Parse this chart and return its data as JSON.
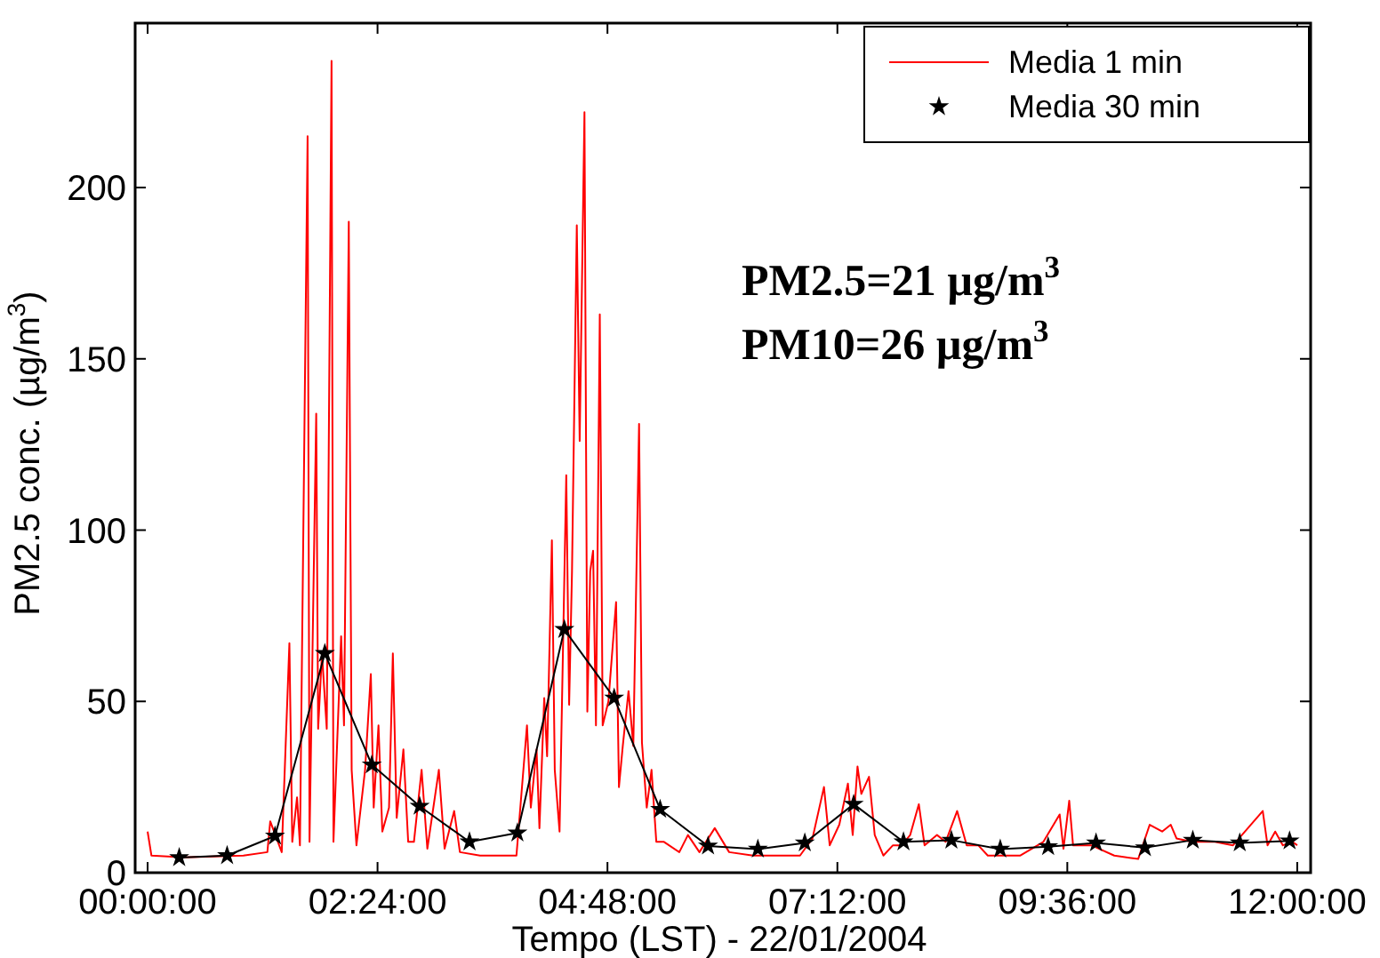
{
  "chart_data": {
    "type": "line",
    "xlabel": "Tempo (LST) - 22/01/2004",
    "ylabel": "PM2.5 conc. (µg/m$^{3}$)",
    "annotations": [
      "PM2.5=21 µg/m$^{3}$",
      "PM10=26 µg/m$^{3}$"
    ],
    "xlim": [
      -0.13,
      12.14
    ],
    "xticks": [
      {
        "value": 0,
        "label": "00:00:00"
      },
      {
        "value": 2.4,
        "label": "02:24:00"
      },
      {
        "value": 4.8,
        "label": "04:48:00"
      },
      {
        "value": 7.2,
        "label": "07:12:00"
      },
      {
        "value": 9.6,
        "label": "09:36:00"
      },
      {
        "value": 12,
        "label": "12:00:00"
      }
    ],
    "ylim": [
      0,
      248
    ],
    "yticks": [
      0,
      50,
      100,
      150,
      200
    ],
    "grid": false,
    "legend": "top right",
    "series": [
      {
        "name": "Media 1 min",
        "color": "#ff0000",
        "marker": "none",
        "line_style": "solid",
        "x": [
          0,
          0.04,
          0.38,
          1.0,
          1.25,
          1.28,
          1.4,
          1.48,
          1.51,
          1.56,
          1.59,
          1.67,
          1.69,
          1.76,
          1.78,
          1.82,
          1.87,
          1.92,
          1.94,
          2.02,
          2.05,
          2.1,
          2.13,
          2.18,
          2.27,
          2.33,
          2.36,
          2.41,
          2.45,
          2.52,
          2.56,
          2.6,
          2.67,
          2.72,
          2.78,
          2.86,
          2.92,
          3.04,
          3.1,
          3.2,
          3.26,
          3.47,
          3.85,
          3.96,
          4.0,
          4.06,
          4.09,
          4.14,
          4.17,
          4.22,
          4.25,
          4.3,
          4.37,
          4.4,
          4.43,
          4.48,
          4.51,
          4.56,
          4.59,
          4.62,
          4.65,
          4.68,
          4.72,
          4.75,
          4.81,
          4.89,
          4.92,
          4.96,
          5.02,
          5.07,
          5.13,
          5.16,
          5.21,
          5.26,
          5.31,
          5.39,
          5.55,
          5.64,
          5.76,
          5.92,
          6.07,
          6.32,
          6.57,
          6.81,
          6.94,
          7.06,
          7.12,
          7.22,
          7.31,
          7.36,
          7.41,
          7.45,
          7.53,
          7.59,
          7.68,
          7.78,
          7.87,
          7.96,
          8.05,
          8.11,
          8.24,
          8.33,
          8.45,
          8.55,
          8.67,
          8.77,
          9.11,
          9.35,
          9.52,
          9.56,
          9.62,
          9.66,
          9.85,
          10.09,
          10.34,
          10.46,
          10.59,
          10.68,
          10.74,
          10.9,
          11.14,
          11.33,
          11.64,
          11.69,
          11.77,
          11.85,
          11.95,
          12.0
        ],
        "values": [
          12,
          5,
          4.5,
          5,
          6,
          15,
          6,
          67,
          9,
          22,
          8,
          215,
          9,
          134,
          42,
          64,
          42,
          237,
          9,
          69,
          43,
          190,
          30,
          8,
          30,
          58,
          19,
          43,
          12,
          19,
          64,
          16,
          36,
          9,
          9,
          30,
          7,
          30,
          7,
          18,
          6,
          5,
          5,
          43,
          19,
          36,
          13,
          51,
          34,
          97,
          30,
          12,
          116,
          49,
          88,
          189,
          126,
          222,
          47,
          88,
          94,
          43,
          163,
          43,
          50,
          79,
          25,
          37,
          53,
          37,
          131,
          38,
          19,
          30,
          9,
          9,
          6,
          11,
          6,
          13,
          6,
          5,
          5,
          5,
          10,
          25,
          8,
          14,
          26,
          11,
          31,
          23,
          28,
          11,
          5,
          8,
          8,
          11,
          20,
          8,
          11,
          9,
          18,
          8,
          8,
          5,
          5,
          9,
          17,
          7,
          21,
          8,
          8,
          5,
          4,
          14,
          12,
          14,
          10,
          9,
          9,
          8,
          18,
          8,
          12,
          8,
          9,
          8
        ]
      },
      {
        "name": "Media 30 min",
        "color": "#000000",
        "marker": "star",
        "line_style": "solid",
        "x": [
          0.33,
          0.83,
          1.33,
          1.85,
          2.34,
          2.84,
          3.36,
          3.86,
          4.35,
          4.87,
          5.35,
          5.85,
          6.37,
          6.86,
          7.37,
          7.89,
          8.39,
          8.9,
          9.4,
          9.9,
          10.41,
          10.91,
          11.4,
          11.92
        ],
        "values": [
          4.4,
          5,
          10.7,
          64,
          31.5,
          19.4,
          9,
          11.6,
          71,
          51,
          18.5,
          7.8,
          6.9,
          8.7,
          20,
          9,
          9.5,
          6.9,
          7.6,
          8.7,
          7.3,
          9.5,
          8.7,
          9.3
        ]
      }
    ]
  }
}
